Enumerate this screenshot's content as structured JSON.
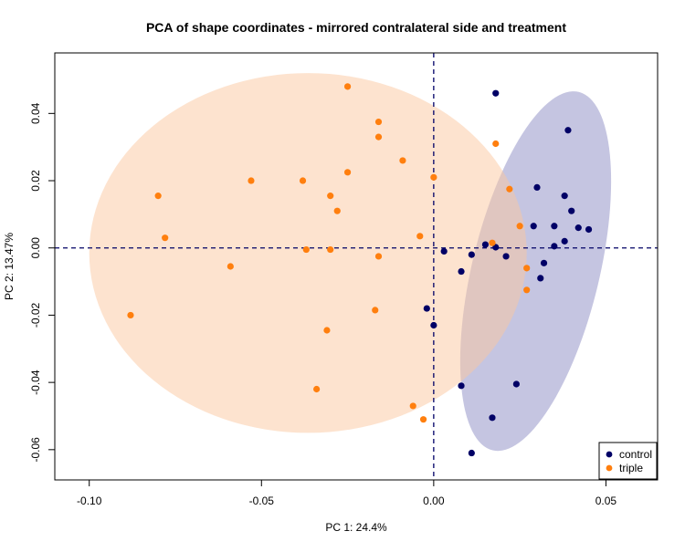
{
  "chart_data": {
    "type": "scatter",
    "title": "PCA of shape coordinates - mirrored contralateral side and treatment",
    "xlabel": "PC 1: 24.4%",
    "ylabel": "PC 2: 13.47%",
    "xlim": [
      -0.11,
      0.065
    ],
    "ylim": [
      -0.069,
      0.058
    ],
    "x_ticks": [
      -0.1,
      -0.05,
      0.0,
      0.05
    ],
    "x_tick_labels": [
      "-0.10",
      "-0.05",
      "0.00",
      "0.05"
    ],
    "y_ticks": [
      -0.06,
      -0.04,
      -0.02,
      0.0,
      0.02,
      0.04
    ],
    "y_tick_labels": [
      "-0.06",
      "-0.04",
      "-0.02",
      "0.00",
      "0.02",
      "0.04"
    ],
    "grid": false,
    "reference_lines": {
      "x": 0,
      "y": 0,
      "style": "dashed",
      "color": "#000066"
    },
    "legend": {
      "position": "bottom-right"
    },
    "series": [
      {
        "name": "control",
        "color": "#000066",
        "ellipse_color": "#8c8cc4",
        "ellipse": {
          "cx": 0.0296,
          "cy": -0.0069,
          "rx": 0.0185,
          "ry": 0.0548,
          "angle_deg": 13.5
        },
        "points": [
          [
            0.018,
            0.046
          ],
          [
            0.039,
            0.035
          ],
          [
            0.03,
            0.018
          ],
          [
            0.038,
            0.0155
          ],
          [
            0.04,
            0.011
          ],
          [
            0.029,
            0.0065
          ],
          [
            0.035,
            0.0065
          ],
          [
            0.042,
            0.006
          ],
          [
            0.045,
            0.0055
          ],
          [
            0.038,
            0.002
          ],
          [
            0.035,
            0.0005
          ],
          [
            0.015,
            0.001
          ],
          [
            0.018,
            0.0002
          ],
          [
            0.003,
            -0.001
          ],
          [
            0.011,
            -0.002
          ],
          [
            0.021,
            -0.0025
          ],
          [
            0.032,
            -0.0045
          ],
          [
            0.008,
            -0.007
          ],
          [
            0.031,
            -0.009
          ],
          [
            -0.002,
            -0.018
          ],
          [
            0.0,
            -0.023
          ],
          [
            0.024,
            -0.0405
          ],
          [
            0.008,
            -0.041
          ],
          [
            0.017,
            -0.0505
          ],
          [
            0.011,
            -0.061
          ]
        ]
      },
      {
        "name": "triple",
        "color": "#ff7f0e",
        "ellipse_color": "#fbc7a0",
        "ellipse": {
          "cx": -0.0365,
          "cy": -0.0015,
          "rx": 0.0635,
          "ry": 0.0535,
          "angle_deg": 0
        },
        "points": [
          [
            -0.025,
            0.048
          ],
          [
            -0.016,
            0.0375
          ],
          [
            -0.016,
            0.033
          ],
          [
            0.018,
            0.031
          ],
          [
            -0.009,
            0.026
          ],
          [
            -0.025,
            0.0225
          ],
          [
            0.0,
            0.021
          ],
          [
            -0.053,
            0.02
          ],
          [
            -0.038,
            0.02
          ],
          [
            0.022,
            0.0175
          ],
          [
            -0.08,
            0.0155
          ],
          [
            -0.03,
            0.0155
          ],
          [
            -0.028,
            0.011
          ],
          [
            0.025,
            0.0065
          ],
          [
            -0.004,
            0.0035
          ],
          [
            -0.078,
            0.003
          ],
          [
            0.017,
            0.0015
          ],
          [
            -0.037,
            -0.0005
          ],
          [
            -0.03,
            -0.0005
          ],
          [
            -0.016,
            -0.0025
          ],
          [
            -0.059,
            -0.0055
          ],
          [
            0.027,
            -0.006
          ],
          [
            0.027,
            -0.0125
          ],
          [
            -0.017,
            -0.0185
          ],
          [
            -0.088,
            -0.02
          ],
          [
            -0.031,
            -0.0245
          ],
          [
            -0.034,
            -0.042
          ],
          [
            -0.006,
            -0.047
          ],
          [
            -0.003,
            -0.051
          ]
        ]
      }
    ]
  }
}
